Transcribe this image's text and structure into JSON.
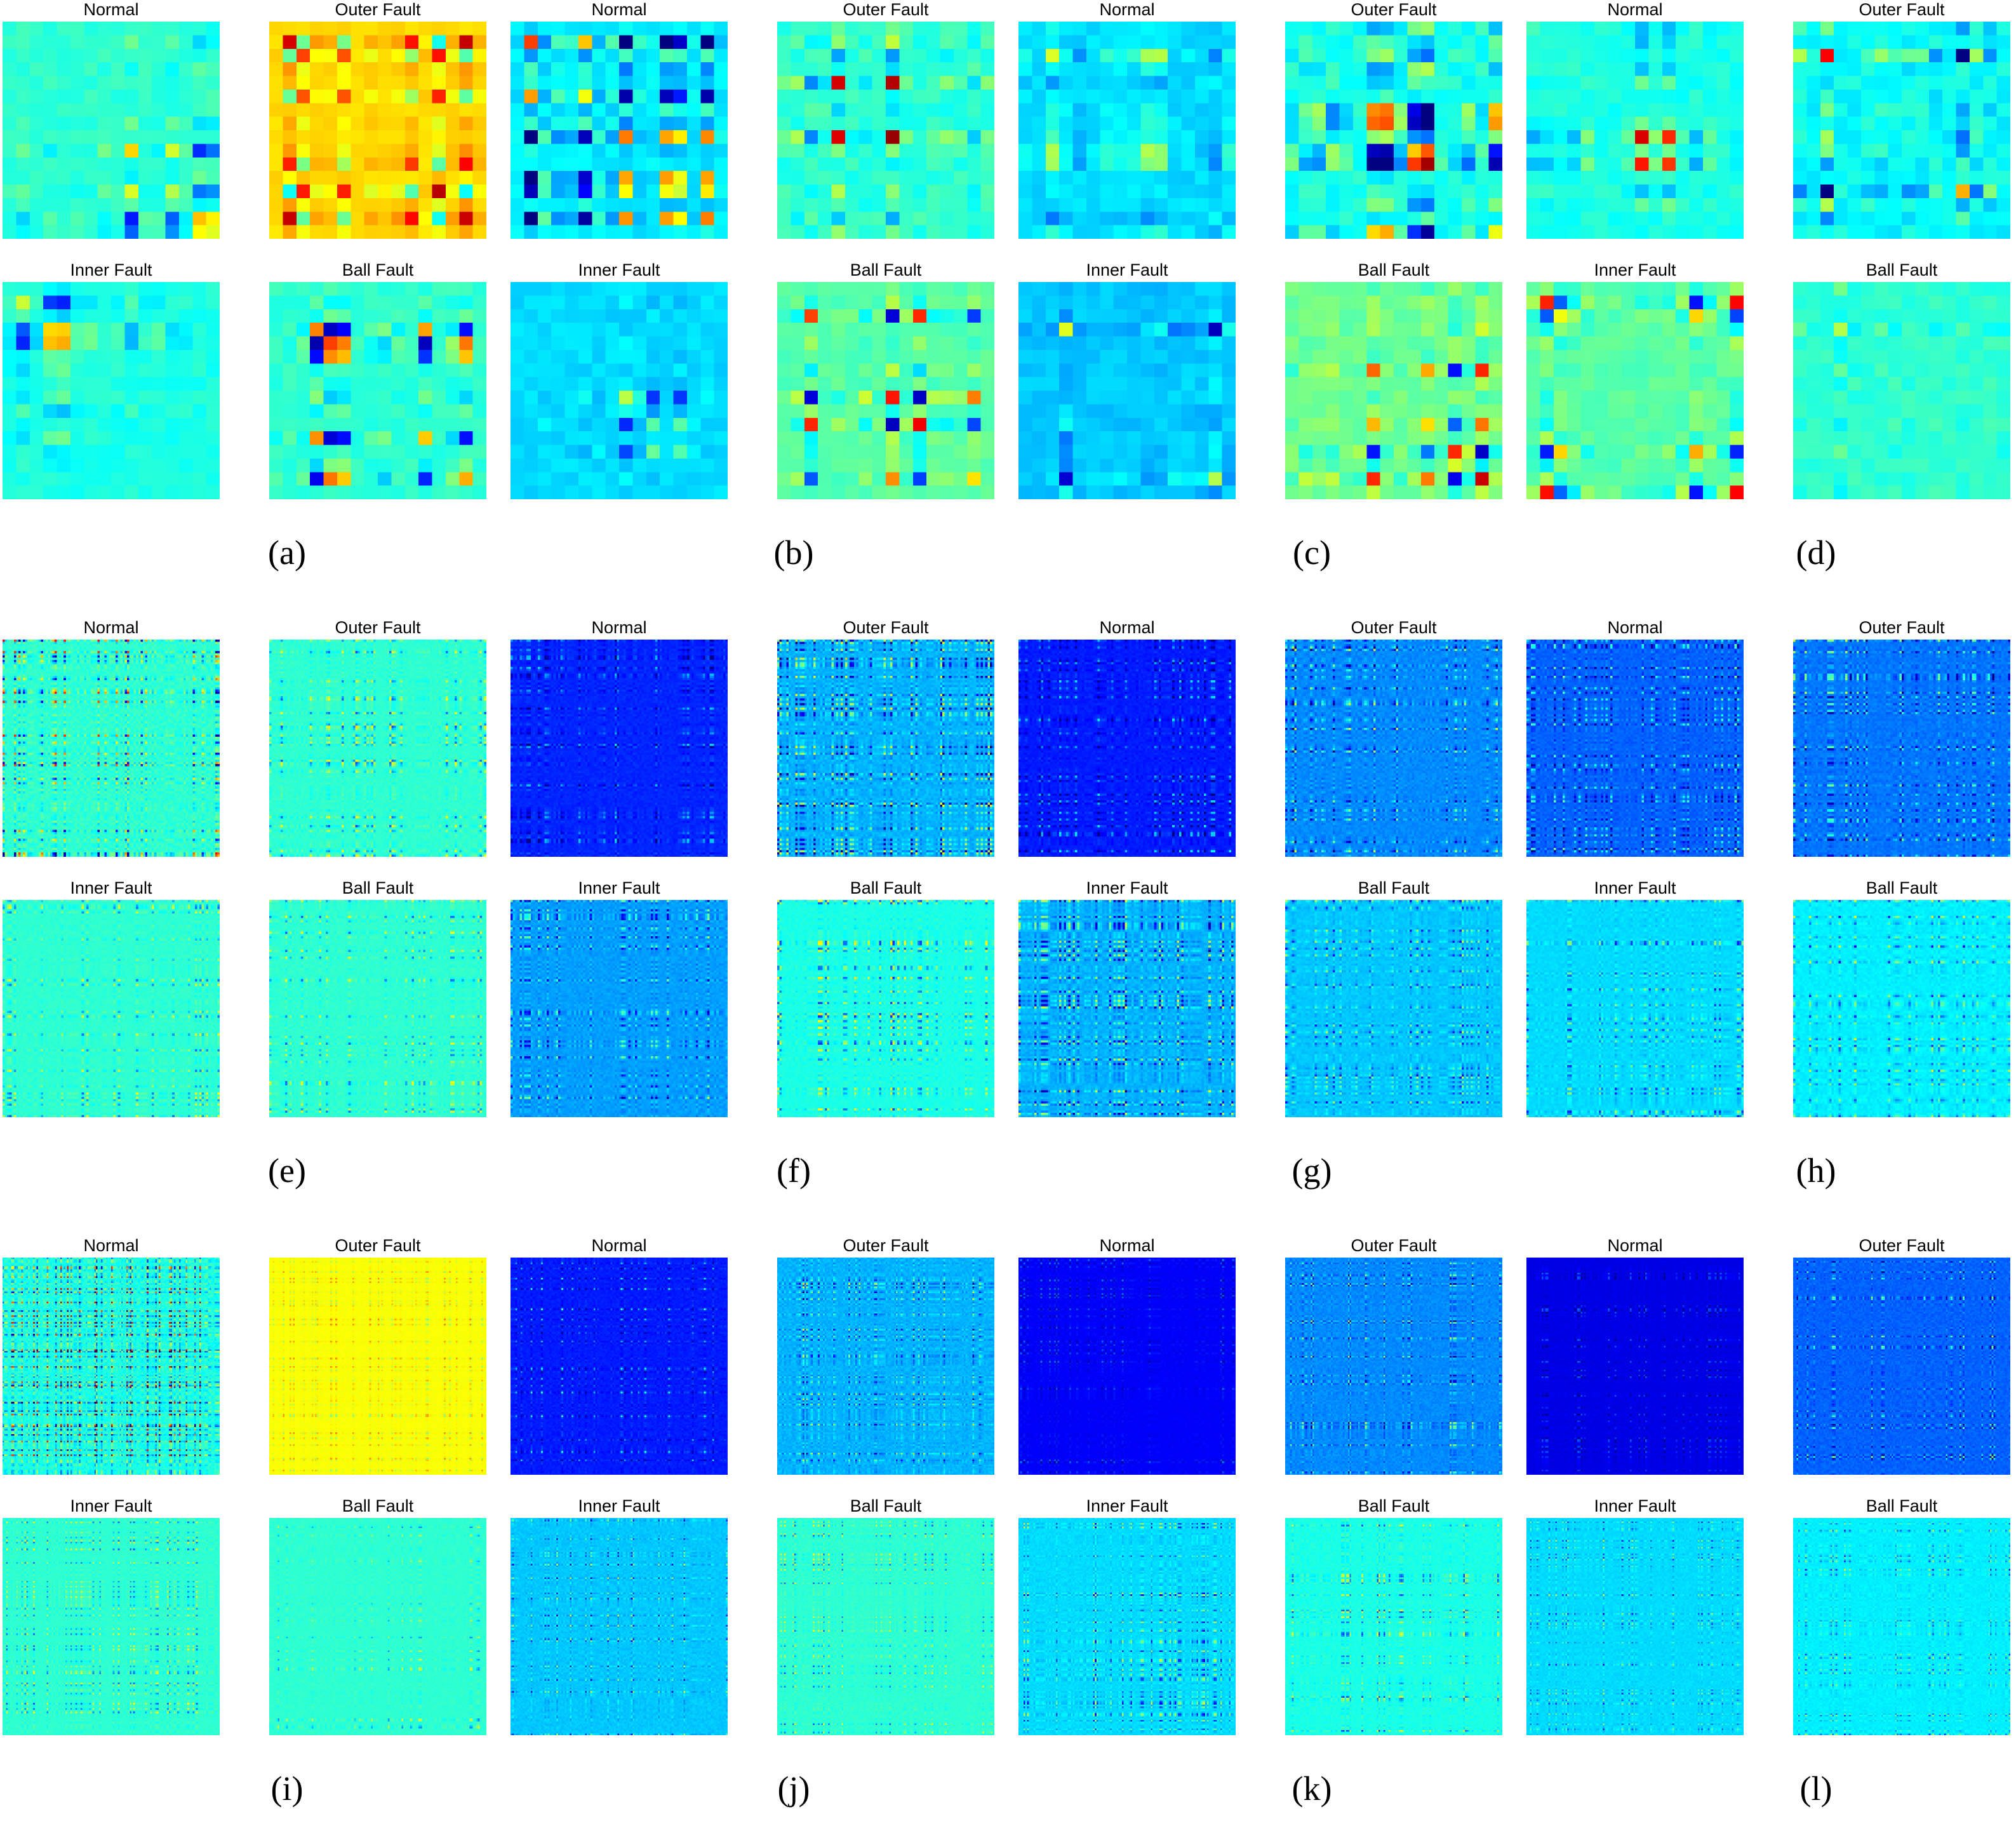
{
  "colormap": "jet",
  "colors": {
    "dark_blue": "#00008f",
    "blue": "#0000ff",
    "cyan": "#00ffff",
    "green": "#80ff80",
    "yellow": "#ffff00",
    "red": "#ff0000",
    "dark_red": "#800000"
  },
  "groups": [
    {
      "captions": [
        "(a)",
        "(b)",
        "(c)",
        "(d)"
      ],
      "resolution": 16,
      "columns": [
        {
          "top": "Normal",
          "bottom": "Inner Fault",
          "base_top": 0.42,
          "amp_top": 0.5,
          "base_bottom": 0.4,
          "amp_bottom": 0.5
        },
        {
          "top": "Outer Fault",
          "bottom": "Ball Fault",
          "base_top": 0.66,
          "amp_top": 0.35,
          "base_bottom": 0.42,
          "amp_bottom": 0.55
        },
        {
          "top": "Normal",
          "bottom": "Inner Fault",
          "base_top": 0.36,
          "amp_top": 0.6,
          "base_bottom": 0.34,
          "amp_bottom": 0.5
        },
        {
          "top": "Outer Fault",
          "bottom": "Ball Fault",
          "base_top": 0.42,
          "amp_top": 0.8,
          "base_bottom": 0.46,
          "amp_bottom": 0.55
        },
        {
          "top": "Normal",
          "bottom": "Inner Fault",
          "base_top": 0.34,
          "amp_top": 0.6,
          "base_bottom": 0.32,
          "amp_bottom": 0.5
        },
        {
          "top": "Outer Fault",
          "bottom": "Ball Fault",
          "base_top": 0.4,
          "amp_top": 0.9,
          "base_bottom": 0.48,
          "amp_bottom": 0.55
        },
        {
          "top": "Normal",
          "bottom": "Inner Fault",
          "base_top": 0.4,
          "amp_top": 0.6,
          "base_bottom": 0.46,
          "amp_bottom": 0.55
        },
        {
          "top": "Outer Fault",
          "bottom": "Ball Fault",
          "base_top": 0.38,
          "amp_top": 0.95,
          "base_bottom": 0.42,
          "amp_bottom": 0.5
        }
      ]
    },
    {
      "captions": [
        "(e)",
        "(f)",
        "(g)",
        "(h)"
      ],
      "resolution": 96,
      "columns": [
        {
          "top": "Normal",
          "bottom": "Inner Fault",
          "base_top": 0.42,
          "amp_top": 0.55,
          "base_bottom": 0.42,
          "amp_bottom": 0.25
        },
        {
          "top": "Outer Fault",
          "bottom": "Ball Fault",
          "base_top": 0.42,
          "amp_top": 0.3,
          "base_bottom": 0.42,
          "amp_bottom": 0.25
        },
        {
          "top": "Normal",
          "bottom": "Inner Fault",
          "base_top": 0.16,
          "amp_top": 0.3,
          "base_bottom": 0.28,
          "amp_bottom": 0.35
        },
        {
          "top": "Outer Fault",
          "bottom": "Ball Fault",
          "base_top": 0.3,
          "amp_top": 0.45,
          "base_bottom": 0.4,
          "amp_bottom": 0.3
        },
        {
          "top": "Normal",
          "bottom": "Inner Fault",
          "base_top": 0.15,
          "amp_top": 0.28,
          "base_bottom": 0.3,
          "amp_bottom": 0.4
        },
        {
          "top": "Outer Fault",
          "bottom": "Ball Fault",
          "base_top": 0.26,
          "amp_top": 0.4,
          "base_bottom": 0.32,
          "amp_bottom": 0.3
        },
        {
          "top": "Normal",
          "bottom": "Inner Fault",
          "base_top": 0.22,
          "amp_top": 0.35,
          "base_bottom": 0.34,
          "amp_bottom": 0.25
        },
        {
          "top": "Outer Fault",
          "bottom": "Ball Fault",
          "base_top": 0.24,
          "amp_top": 0.42,
          "base_bottom": 0.36,
          "amp_bottom": 0.3
        }
      ]
    },
    {
      "captions": [
        "(i)",
        "(j)",
        "(k)",
        "(l)"
      ],
      "resolution": 128,
      "columns": [
        {
          "top": "Normal",
          "bottom": "Inner Fault",
          "base_top": 0.4,
          "amp_top": 0.95,
          "base_bottom": 0.42,
          "amp_bottom": 0.25
        },
        {
          "top": "Outer Fault",
          "bottom": "Ball Fault",
          "base_top": 0.62,
          "amp_top": 0.15,
          "base_bottom": 0.42,
          "amp_bottom": 0.2
        },
        {
          "top": "Normal",
          "bottom": "Inner Fault",
          "base_top": 0.15,
          "amp_top": 0.3,
          "base_bottom": 0.32,
          "amp_bottom": 0.35
        },
        {
          "top": "Outer Fault",
          "bottom": "Ball Fault",
          "base_top": 0.3,
          "amp_top": 0.45,
          "base_bottom": 0.42,
          "amp_bottom": 0.3
        },
        {
          "top": "Normal",
          "bottom": "Inner Fault",
          "base_top": 0.12,
          "amp_top": 0.2,
          "base_bottom": 0.34,
          "amp_bottom": 0.3
        },
        {
          "top": "Outer Fault",
          "bottom": "Ball Fault",
          "base_top": 0.26,
          "amp_top": 0.4,
          "base_bottom": 0.4,
          "amp_bottom": 0.3
        },
        {
          "top": "Normal",
          "bottom": "Inner Fault",
          "base_top": 0.1,
          "amp_top": 0.15,
          "base_bottom": 0.34,
          "amp_bottom": 0.25
        },
        {
          "top": "Outer Fault",
          "bottom": "Ball Fault",
          "base_top": 0.22,
          "amp_top": 0.4,
          "base_bottom": 0.36,
          "amp_bottom": 0.25
        }
      ]
    }
  ]
}
